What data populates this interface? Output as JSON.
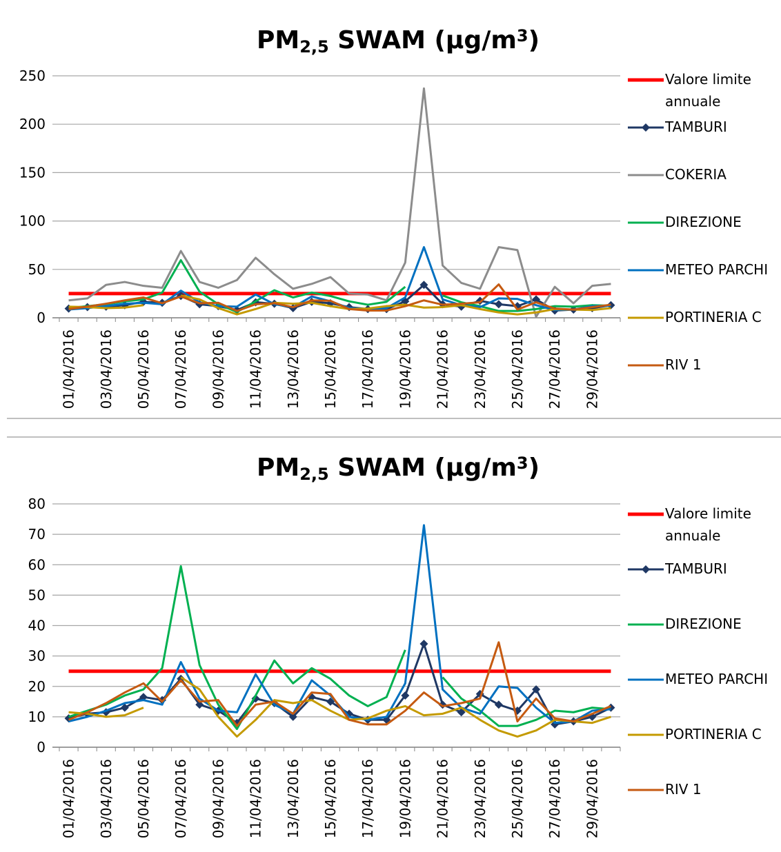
{
  "chart_data": [
    {
      "type": "line",
      "title": [
        "PM",
        "2,5",
        " SWAM  (µg/m",
        "3",
        ")"
      ],
      "categories": [
        "01/04/2016",
        null,
        "03/04/2016",
        null,
        "05/04/2016",
        null,
        "07/04/2016",
        null,
        "09/04/2016",
        null,
        "11/04/2016",
        null,
        "13/04/2016",
        null,
        "15/04/2016",
        null,
        "17/04/2016",
        null,
        "19/04/2016",
        null,
        "21/04/2016",
        null,
        "23/04/2016",
        null,
        "25/04/2016",
        null,
        "27/04/2016",
        null,
        "29/04/2016",
        null
      ],
      "ylim": [
        0,
        250
      ],
      "yticks": [
        0,
        50,
        100,
        150,
        200,
        250
      ],
      "grid": true,
      "legend": "right",
      "series": [
        {
          "name": "Valore limite annuale",
          "color": "#ff0000",
          "values": [
            25,
            25,
            25,
            25,
            25,
            25,
            25,
            25,
            25,
            25,
            25,
            25,
            25,
            25,
            25,
            25,
            25,
            25,
            25,
            25,
            25,
            25,
            25,
            25,
            25,
            25,
            25,
            25,
            25,
            25
          ]
        },
        {
          "name": "TAMBURI",
          "color": "#1f3864",
          "marker": "diamond",
          "values": [
            9.5,
            11,
            11.5,
            13,
            16.5,
            15.5,
            22.5,
            14,
            12,
            8,
            16,
            14.5,
            10,
            16.5,
            15,
            11,
            9,
            9,
            17,
            34,
            14,
            11.5,
            17.5,
            14,
            12,
            19,
            7.5,
            8.5,
            10,
            13
          ]
        },
        {
          "name": "COKERIA",
          "color": "#8c8c8c",
          "values": [
            18,
            20,
            34,
            37,
            33,
            31,
            69,
            37,
            31,
            39,
            62,
            45,
            30,
            35,
            42,
            25,
            24,
            18,
            57,
            237,
            54,
            36,
            30,
            73,
            70,
            1,
            32,
            15,
            33,
            35
          ]
        },
        {
          "name": "DIREZIONE",
          "color": "#00b050",
          "values": [
            10,
            12,
            14,
            17,
            19,
            26,
            59.5,
            27,
            14,
            6,
            17,
            28.5,
            21,
            26,
            22.5,
            17,
            13.5,
            16.5,
            32,
            null,
            23,
            16,
            12,
            7,
            7,
            9,
            12,
            11.5,
            13,
            12.5
          ]
        },
        {
          "name": "METEO PARCHI",
          "color": "#0070c0",
          "values": [
            8.5,
            10,
            12,
            14.5,
            15.5,
            14,
            28,
            16,
            12,
            11.5,
            24,
            14,
            11,
            22,
            17,
            10,
            9,
            10,
            21,
            73,
            19,
            13,
            11,
            20,
            19.5,
            13,
            8,
            8.5,
            12,
            12.5
          ]
        },
        {
          "name": "PORTINERIA C",
          "color": "#c49a00",
          "values": [
            11.5,
            11,
            10,
            10.5,
            13,
            null,
            23,
            19,
            10,
            3.5,
            9,
            15.5,
            14.5,
            15.5,
            12,
            9,
            9.5,
            12,
            13.5,
            10.5,
            11,
            13,
            9,
            5.5,
            3.5,
            5.5,
            9,
            8.5,
            8,
            10
          ]
        },
        {
          "name": "RIV 1",
          "color": "#c55a11",
          "values": [
            9,
            11.5,
            14.5,
            18,
            21,
            15,
            22,
            15,
            15.5,
            7,
            14,
            15,
            11,
            18,
            17.5,
            9,
            7.5,
            7.5,
            12,
            18,
            13.5,
            14.5,
            16,
            34.5,
            8.5,
            16,
            9.5,
            8.5,
            11,
            13.5
          ]
        }
      ]
    },
    {
      "type": "line",
      "title": [
        "PM",
        "2,5",
        " SWAM  (µg/m",
        "3",
        ")"
      ],
      "categories": [
        "01/04/2016",
        null,
        "03/04/2016",
        null,
        "05/04/2016",
        null,
        "07/04/2016",
        null,
        "09/04/2016",
        null,
        "11/04/2016",
        null,
        "13/04/2016",
        null,
        "15/04/2016",
        null,
        "17/04/2016",
        null,
        "19/04/2016",
        null,
        "21/04/2016",
        null,
        "23/04/2016",
        null,
        "25/04/2016",
        null,
        "27/04/2016",
        null,
        "29/04/2016",
        null
      ],
      "ylim": [
        0,
        80
      ],
      "yticks": [
        0,
        10,
        20,
        30,
        40,
        50,
        60,
        70,
        80
      ],
      "grid": true,
      "legend": "right",
      "series": [
        {
          "name": "Valore limite annuale",
          "color": "#ff0000",
          "values": [
            25,
            25,
            25,
            25,
            25,
            25,
            25,
            25,
            25,
            25,
            25,
            25,
            25,
            25,
            25,
            25,
            25,
            25,
            25,
            25,
            25,
            25,
            25,
            25,
            25,
            25,
            25,
            25,
            25,
            25
          ]
        },
        {
          "name": "TAMBURI",
          "color": "#1f3864",
          "marker": "diamond",
          "values": [
            9.5,
            11,
            11.5,
            13,
            16.5,
            15.5,
            22.5,
            14,
            12,
            8,
            16,
            14.5,
            10,
            16.5,
            15,
            11,
            9,
            9,
            17,
            34,
            14,
            11.5,
            17.5,
            14,
            12,
            19,
            7.5,
            8.5,
            10,
            13
          ]
        },
        {
          "name": "DIREZIONE",
          "color": "#00b050",
          "values": [
            10,
            12,
            14,
            17,
            19,
            26,
            59.5,
            27,
            14,
            6,
            17,
            28.5,
            21,
            26,
            22.5,
            17,
            13.5,
            16.5,
            32,
            null,
            23,
            16,
            12,
            7,
            7,
            9,
            12,
            11.5,
            13,
            12.5
          ]
        },
        {
          "name": "METEO PARCHI",
          "color": "#0070c0",
          "values": [
            8.5,
            10,
            12,
            14.5,
            15.5,
            14,
            28,
            16,
            12,
            11.5,
            24,
            14,
            11,
            22,
            17,
            10,
            9,
            10,
            21,
            73,
            19,
            13,
            11,
            20,
            19.5,
            13,
            8,
            8.5,
            12,
            12.5
          ]
        },
        {
          "name": "PORTINERIA C",
          "color": "#c49a00",
          "values": [
            11.5,
            11,
            10,
            10.5,
            13,
            null,
            23,
            19,
            10,
            3.5,
            9,
            15.5,
            14.5,
            15.5,
            12,
            9,
            9.5,
            12,
            13.5,
            10.5,
            11,
            13,
            9,
            5.5,
            3.5,
            5.5,
            9,
            8.5,
            8,
            10
          ]
        },
        {
          "name": "RIV 1",
          "color": "#c55a11",
          "values": [
            9,
            11.5,
            14.5,
            18,
            21,
            15,
            22,
            15,
            15.5,
            7,
            14,
            15,
            11,
            18,
            17.5,
            9,
            7.5,
            7.5,
            12,
            18,
            13.5,
            14.5,
            16,
            34.5,
            8.5,
            16,
            9.5,
            8.5,
            11,
            13.5
          ]
        }
      ]
    }
  ]
}
